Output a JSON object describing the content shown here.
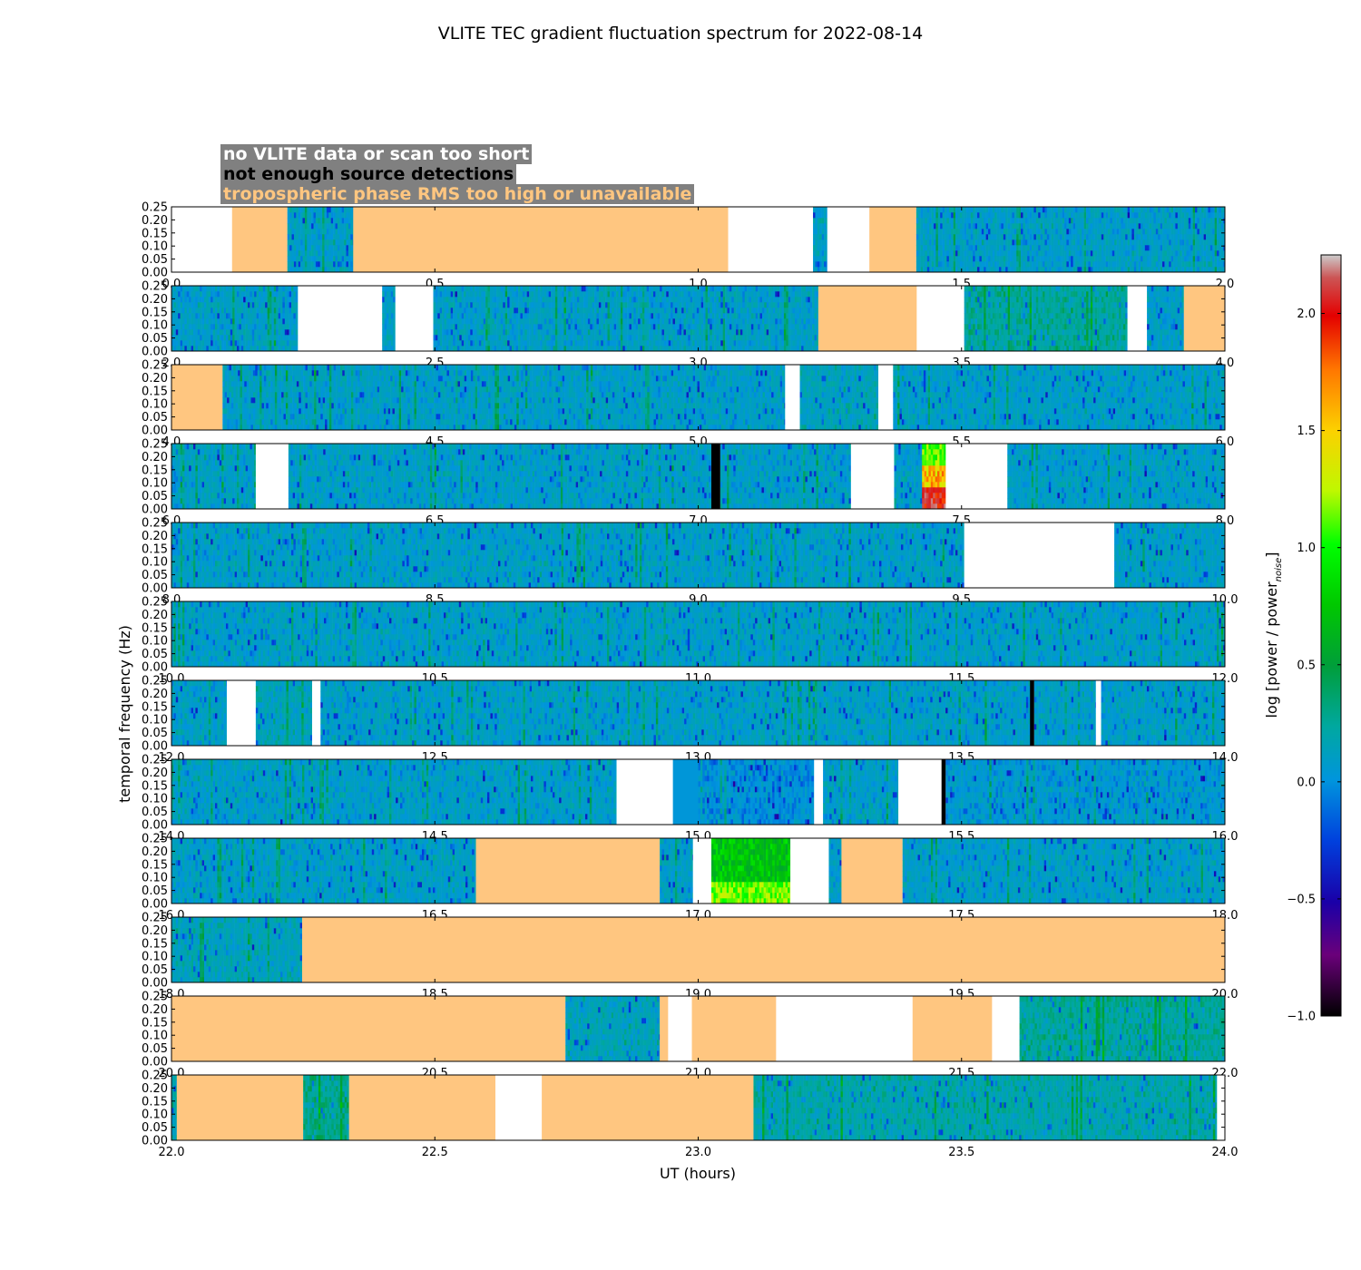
{
  "chart_data": {
    "type": "heatmap",
    "title": "VLITE TEC gradient fluctuation spectrum for 2022-08-14",
    "xlabel": "UT (hours)",
    "ylabel": "temporal frequency (Hz)",
    "yticks": [
      "0.00",
      "0.05",
      "0.10",
      "0.15",
      "0.20",
      "0.25"
    ],
    "ylim": [
      0,
      0.25
    ],
    "colorbar": {
      "label": "log [power / power",
      "label_sub": "noise",
      "label_end": "]",
      "range": [
        -1.0,
        2.25
      ],
      "ticks": [
        "−1.0",
        "−0.5",
        "0.0",
        "0.5",
        "1.0",
        "1.5",
        "2.0"
      ],
      "tick_values": [
        -1.0,
        -0.5,
        0.0,
        0.5,
        1.0,
        1.5,
        2.0
      ],
      "colormap": "nipy_spectral"
    },
    "legend": [
      {
        "label": "no VLITE data or scan too short",
        "color": "#ffffff"
      },
      {
        "label": "not enough source detections",
        "color": "#000000"
      },
      {
        "label": "tropospheric phase RMS too high or unavailable",
        "color": "#ffc680"
      }
    ],
    "panels": [
      {
        "range": [
          0,
          2
        ],
        "ticks": [
          "0.0",
          "0.5",
          "1.0",
          "1.5",
          "2.0"
        ],
        "segments": [
          [
            "nodata",
            0,
            0.115
          ],
          [
            "tropo",
            0.115,
            0.22
          ],
          [
            "spec",
            0.22,
            0.345,
            0.1
          ],
          [
            "tropo",
            0.345,
            1.057
          ],
          [
            "nodata",
            1.057,
            1.218
          ],
          [
            "spec",
            1.218,
            1.245,
            0.1
          ],
          [
            "nodata",
            1.245,
            1.325
          ],
          [
            "tropo",
            1.325,
            1.414
          ],
          [
            "spec",
            1.414,
            2.0,
            0.1
          ]
        ]
      },
      {
        "range": [
          2,
          4
        ],
        "ticks": [
          "2.0",
          "2.5",
          "3.0",
          "3.5",
          "4.0"
        ],
        "segments": [
          [
            "spec",
            2.0,
            2.24,
            0.1
          ],
          [
            "nodata",
            2.24,
            2.4
          ],
          [
            "spec",
            2.4,
            2.425,
            0.1
          ],
          [
            "nodata",
            2.425,
            2.497
          ],
          [
            "spec",
            2.497,
            3.228,
            0.1
          ],
          [
            "tropo",
            3.228,
            3.415
          ],
          [
            "nodata",
            3.415,
            3.505
          ],
          [
            "spec",
            3.505,
            3.815,
            0.25
          ],
          [
            "nodata",
            3.815,
            3.852
          ],
          [
            "spec",
            3.852,
            3.922,
            0.1
          ],
          [
            "tropo",
            3.922,
            4.0
          ]
        ]
      },
      {
        "range": [
          4,
          6
        ],
        "ticks": [
          "4.0",
          "4.5",
          "5.0",
          "5.5",
          "6.0"
        ],
        "segments": [
          [
            "tropo",
            4.0,
            4.097
          ],
          [
            "spec",
            4.097,
            5.165,
            0.1
          ],
          [
            "nodata",
            5.165,
            5.193
          ],
          [
            "spec",
            5.193,
            5.342,
            0.15
          ],
          [
            "nodata",
            5.342,
            5.37
          ],
          [
            "spec",
            5.37,
            6.0,
            0.1
          ]
        ]
      },
      {
        "range": [
          6,
          8
        ],
        "ticks": [
          "6.0",
          "6.5",
          "7.0",
          "7.5",
          "8.0"
        ],
        "segments": [
          [
            "spec",
            6.0,
            6.16,
            0.1
          ],
          [
            "nodata",
            6.16,
            6.222
          ],
          [
            "spec",
            6.222,
            7.025,
            0.1
          ],
          [
            "nodet",
            7.025,
            7.042
          ],
          [
            "spec",
            7.042,
            7.29,
            0.1
          ],
          [
            "nodata",
            7.29,
            7.372
          ],
          [
            "spec",
            7.372,
            7.425,
            0.1
          ],
          [
            "hot",
            7.425,
            7.47
          ],
          [
            "nodata",
            7.47,
            7.587
          ],
          [
            "spec",
            7.587,
            8.0,
            0.1
          ]
        ]
      },
      {
        "range": [
          8,
          10
        ],
        "ticks": [
          "8.0",
          "8.5",
          "9.0",
          "9.5",
          "10.0"
        ],
        "segments": [
          [
            "spec",
            8.0,
            9.505,
            0.1
          ],
          [
            "nodata",
            9.505,
            9.79
          ],
          [
            "spec",
            9.79,
            10.0,
            0.1
          ]
        ]
      },
      {
        "range": [
          10,
          12
        ],
        "ticks": [
          "10.0",
          "10.5",
          "11.0",
          "11.5",
          "12.0"
        ],
        "segments": [
          [
            "spec",
            10.0,
            12.0,
            0.1
          ]
        ]
      },
      {
        "range": [
          12,
          14
        ],
        "ticks": [
          "12.0",
          "12.5",
          "13.0",
          "13.5",
          "14.0"
        ],
        "segments": [
          [
            "spec",
            12.0,
            12.105,
            0.1
          ],
          [
            "nodata",
            12.105,
            12.16
          ],
          [
            "spec",
            12.16,
            12.267,
            0.15
          ],
          [
            "nodata",
            12.267,
            12.283
          ],
          [
            "spec",
            12.283,
            13.63,
            0.1
          ],
          [
            "nodet",
            13.63,
            13.638
          ],
          [
            "spec",
            13.638,
            13.755,
            0.1
          ],
          [
            "nodata",
            13.755,
            13.765
          ],
          [
            "spec",
            13.765,
            14.0,
            0.1
          ]
        ]
      },
      {
        "range": [
          14,
          16
        ],
        "ticks": [
          "14.0",
          "14.5",
          "15.0",
          "15.5",
          "16.0"
        ],
        "segments": [
          [
            "spec",
            14.0,
            14.845,
            0.1
          ],
          [
            "nodata",
            14.845,
            14.952
          ],
          [
            "flat",
            14.952,
            15.0
          ],
          [
            "spec",
            15.0,
            15.22,
            0.0
          ],
          [
            "nodata",
            15.22,
            15.237
          ],
          [
            "spec",
            15.237,
            15.38,
            0.1
          ],
          [
            "nodata",
            15.38,
            15.462
          ],
          [
            "nodet",
            15.462,
            15.47
          ],
          [
            "spec",
            15.47,
            16.0,
            0.05
          ]
        ]
      },
      {
        "range": [
          16,
          18
        ],
        "ticks": [
          "16.0",
          "16.5",
          "17.0",
          "17.5",
          "18.0"
        ],
        "segments": [
          [
            "spec",
            16.0,
            16.578,
            0.1
          ],
          [
            "tropo",
            16.578,
            16.927
          ],
          [
            "spec",
            16.927,
            16.99,
            0.1
          ],
          [
            "nodata",
            16.99,
            17.025
          ],
          [
            "green",
            17.025,
            17.175
          ],
          [
            "nodata",
            17.175,
            17.248
          ],
          [
            "spec",
            17.248,
            17.272,
            0.1
          ],
          [
            "tropo",
            17.272,
            17.388
          ],
          [
            "spec",
            17.388,
            18.0,
            0.1
          ]
        ]
      },
      {
        "range": [
          18,
          20
        ],
        "ticks": [
          "18.0",
          "18.5",
          "19.0",
          "19.5",
          "20.0"
        ],
        "segments": [
          [
            "spec",
            18.0,
            18.248,
            0.15
          ],
          [
            "tropo",
            18.248,
            20.0
          ]
        ]
      },
      {
        "range": [
          20,
          22
        ],
        "ticks": [
          "20.0",
          "20.5",
          "21.0",
          "21.5",
          "22.0"
        ],
        "segments": [
          [
            "tropo",
            20.0,
            20.748
          ],
          [
            "spec",
            20.748,
            20.927,
            0.15
          ],
          [
            "tropo",
            20.927,
            20.943
          ],
          [
            "nodata",
            20.943,
            20.988
          ],
          [
            "tropo",
            20.988,
            21.148
          ],
          [
            "nodata",
            21.148,
            21.407
          ],
          [
            "tropo",
            21.407,
            21.558
          ],
          [
            "nodata",
            21.558,
            21.61
          ],
          [
            "spec",
            21.61,
            22.0,
            0.25
          ]
        ]
      },
      {
        "range": [
          22,
          24
        ],
        "ticks": [
          "22.0",
          "22.5",
          "23.0",
          "23.5",
          "24.0"
        ],
        "segments": [
          [
            "spec",
            22.0,
            22.01,
            0.2
          ],
          [
            "tropo",
            22.01,
            22.25
          ],
          [
            "spec",
            22.25,
            22.337,
            0.3
          ],
          [
            "tropo",
            22.337,
            22.615
          ],
          [
            "nodata",
            22.615,
            22.703
          ],
          [
            "tropo",
            22.703,
            23.105
          ],
          [
            "spec",
            23.105,
            23.985,
            0.2
          ],
          [
            "nodata",
            23.985,
            24.0
          ]
        ]
      }
    ]
  }
}
